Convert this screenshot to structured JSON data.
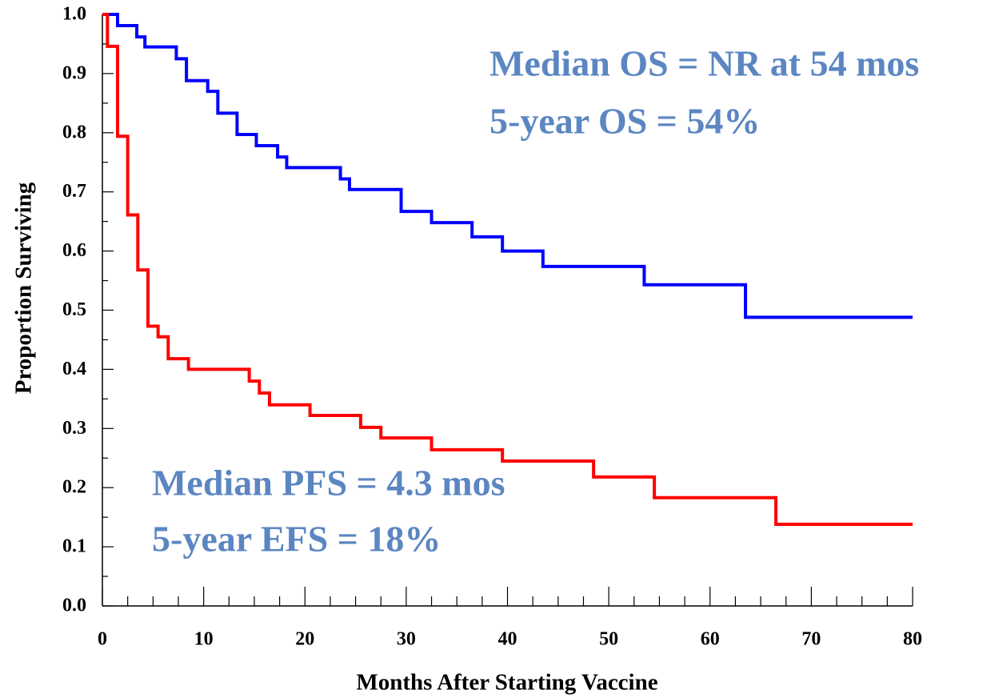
{
  "chart_data": {
    "type": "line",
    "step": true,
    "xlabel": "Months After Starting Vaccine",
    "ylabel": "Proportion Surviving",
    "annotations": [
      "Median OS = NR at 54 mos",
      "5-year OS = 54%",
      "Median PFS = 4.3 mos",
      "5-year EFS = 18%"
    ],
    "annotation_color": "#5b86c2",
    "xlim": [
      0,
      80
    ],
    "ylim": [
      0,
      1
    ],
    "xticks": [
      0,
      10,
      20,
      30,
      40,
      50,
      60,
      70,
      80
    ],
    "xminorticks": [
      2.5,
      5,
      7.5,
      12.5,
      15,
      17.5,
      22.5,
      25,
      27.5,
      32.5,
      35,
      37.5,
      42.5,
      45,
      47.5,
      52.5,
      55,
      57.5,
      62.5,
      65,
      67.5,
      72.5,
      75,
      77.5
    ],
    "yticks": [
      {
        "value": 0,
        "label": "0.0"
      },
      0.1,
      0.2,
      0.3,
      0.4,
      0.5,
      0.6,
      0.7,
      0.8,
      0.9,
      {
        "value": 1,
        "label": "1.0"
      }
    ],
    "yminorticks": [
      0.05,
      0.15,
      0.25,
      0.35,
      0.45,
      0.55,
      0.65,
      0.75,
      0.85,
      0.95
    ],
    "series": [
      {
        "color": "#0000ff",
        "x": [
          0,
          1.5,
          1.5,
          3.4,
          3.4,
          4.2,
          4.2,
          7.3,
          7.3,
          8.3,
          8.3,
          10.4,
          10.4,
          11.4,
          11.4,
          13.3,
          13.3,
          15.2,
          15.2,
          17.3,
          17.3,
          18.2,
          18.2,
          23.5,
          23.5,
          24.4,
          24.4,
          29.5,
          29.5,
          32.5,
          32.5,
          36.5,
          36.5,
          39.5,
          39.5,
          43.5,
          43.5,
          53.5,
          53.5,
          63.5,
          63.5,
          80
        ],
        "values": [
          1,
          1,
          0.981,
          0.981,
          0.962,
          0.962,
          0.945,
          0.945,
          0.925,
          0.925,
          0.888,
          0.888,
          0.87,
          0.87,
          0.833,
          0.833,
          0.797,
          0.797,
          0.778,
          0.778,
          0.759,
          0.759,
          0.741,
          0.741,
          0.722,
          0.722,
          0.704,
          0.704,
          0.667,
          0.667,
          0.648,
          0.648,
          0.624,
          0.624,
          0.6,
          0.6,
          0.574,
          0.574,
          0.543,
          0.543,
          0.488,
          0.488
        ]
      },
      {
        "color": "#ff0000",
        "x": [
          0,
          0.5,
          0.5,
          1.5,
          1.5,
          2.5,
          2.5,
          3.5,
          3.5,
          4.5,
          4.5,
          5.5,
          5.5,
          6.5,
          6.5,
          8.5,
          8.5,
          14.5,
          14.5,
          15.5,
          15.5,
          16.5,
          16.5,
          20.5,
          20.5,
          25.5,
          25.5,
          27.5,
          27.5,
          32.5,
          32.5,
          39.5,
          39.5,
          48.5,
          48.5,
          54.5,
          54.5,
          66.5,
          66.5,
          80
        ],
        "values": [
          1,
          1,
          0.946,
          0.946,
          0.794,
          0.794,
          0.661,
          0.661,
          0.568,
          0.568,
          0.473,
          0.473,
          0.455,
          0.455,
          0.418,
          0.418,
          0.4,
          0.4,
          0.38,
          0.38,
          0.36,
          0.36,
          0.34,
          0.34,
          0.322,
          0.322,
          0.302,
          0.302,
          0.284,
          0.284,
          0.264,
          0.264,
          0.245,
          0.245,
          0.218,
          0.218,
          0.183,
          0.183,
          0.138,
          0.138
        ]
      }
    ]
  }
}
